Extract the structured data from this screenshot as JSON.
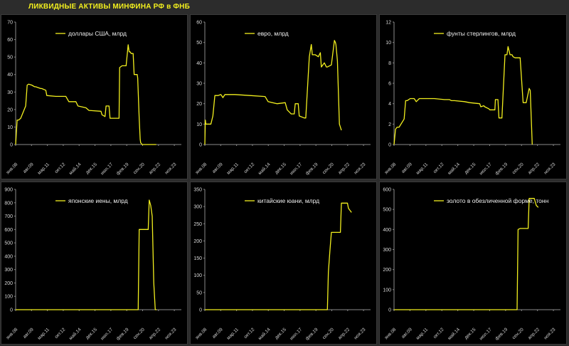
{
  "title": "ЛИКВИДНЫЕ АКТИВЫ МИНФИНА РФ в ФНБ",
  "colors": {
    "line": "#f2ef1e",
    "axis": "#8a8a8a",
    "background": "#000000"
  },
  "chart_data": [
    {
      "type": "line",
      "series_name": "доллары США, млрд",
      "ylim": [
        0,
        70
      ],
      "yticks": [
        0,
        10,
        20,
        30,
        40,
        50,
        60,
        70
      ],
      "xticks": [
        "янв.08",
        "авг.09",
        "мар.11",
        "окт.12",
        "май.14",
        "дек.15",
        "июл.17",
        "фев.19",
        "сен.20",
        "апр.22",
        "ноя.23"
      ],
      "xlim": [
        0,
        16.5
      ],
      "x": [
        0,
        0.15,
        0.3,
        0.5,
        1.0,
        1.15,
        1.3,
        1.6,
        1.9,
        2.0,
        2.5,
        2.6,
        3.0,
        3.1,
        4.0,
        4.2,
        5.0,
        5.3,
        6.0,
        6.2,
        7.0,
        7.3,
        8.5,
        8.6,
        8.9,
        9.0,
        9.3,
        9.4,
        10.0,
        10.05,
        10.3,
        10.35,
        10.6,
        10.7,
        11.0,
        11.2,
        11.3,
        11.4,
        11.5,
        11.7,
        11.8,
        12.1,
        12.15,
        12.3,
        12.4,
        12.45,
        12.6,
        14.0
      ],
      "values": [
        0,
        14,
        14,
        15,
        22,
        34,
        34.5,
        34,
        33,
        33,
        32,
        32,
        31,
        28,
        27.5,
        27.5,
        27.5,
        24.5,
        24.5,
        22,
        21,
        19.5,
        19,
        17,
        16,
        22,
        22,
        15,
        15,
        15,
        15,
        44,
        45,
        45,
        45,
        57,
        53,
        53,
        52,
        52,
        40,
        40,
        38,
        15,
        3,
        1,
        0,
        0
      ]
    },
    {
      "type": "line",
      "series_name": "евро, млрд",
      "ylim": [
        0,
        60
      ],
      "yticks": [
        0,
        10,
        20,
        30,
        40,
        50,
        60
      ],
      "xticks": [
        "янв.08",
        "авг.09",
        "мар.11",
        "окт.12",
        "май.14",
        "дек.15",
        "июл.17",
        "фев.19",
        "сен.20",
        "апр.22",
        "ноя.23"
      ],
      "xlim": [
        0,
        16.5
      ],
      "x": [
        0,
        0.05,
        0.1,
        0.3,
        0.6,
        0.8,
        1.0,
        1.3,
        1.6,
        1.8,
        2.0,
        2.5,
        3.0,
        4.5,
        6.0,
        6.3,
        7.2,
        8.0,
        8.2,
        8.5,
        8.6,
        8.9,
        9.0,
        9.3,
        9.4,
        9.9,
        10.0,
        10.05,
        10.4,
        10.6,
        10.7,
        11.0,
        11.3,
        11.5,
        11.6,
        11.9,
        12.1,
        12.2,
        12.6,
        12.9,
        13.0,
        13.05,
        13.2,
        13.4,
        13.6
      ],
      "values": [
        0,
        12,
        10,
        10,
        10,
        14,
        24,
        24,
        24.5,
        23,
        24.5,
        24.5,
        24.5,
        24,
        23.5,
        21,
        20,
        20.5,
        17,
        15.5,
        15,
        15,
        20,
        20,
        14,
        13,
        13,
        13,
        43,
        49,
        44,
        44,
        43,
        45,
        38,
        40,
        38,
        38,
        39,
        51,
        50,
        49,
        41,
        10,
        7
      ]
    },
    {
      "type": "line",
      "series_name": "фунты стерлингов, млрд",
      "ylim": [
        0,
        12
      ],
      "yticks": [
        0,
        2,
        4,
        6,
        8,
        10,
        12
      ],
      "xticks": [
        "янв.08",
        "авг.09",
        "мар.11",
        "окт.12",
        "май.14",
        "дек.15",
        "июл.17",
        "фев.19",
        "сен.20",
        "апр.22",
        "ноя.23"
      ],
      "xlim": [
        0,
        16.5
      ],
      "x": [
        0,
        0.15,
        0.3,
        0.5,
        1.0,
        1.15,
        1.3,
        1.6,
        2.0,
        2.2,
        2.5,
        4.0,
        5.0,
        5.5,
        5.7,
        6.0,
        7.0,
        7.5,
        8.5,
        8.6,
        8.9,
        9.0,
        9.4,
        9.5,
        10.0,
        10.05,
        10.3,
        10.4,
        10.6,
        10.7,
        11.0,
        11.2,
        11.3,
        11.5,
        11.7,
        11.8,
        12.0,
        12.1,
        12.5,
        12.8,
        13.0,
        13.1,
        13.4,
        13.5,
        13.7
      ],
      "values": [
        0,
        1.5,
        1.7,
        1.7,
        2.5,
        4.3,
        4.3,
        4.5,
        4.5,
        4.2,
        4.5,
        4.5,
        4.4,
        4.4,
        4.3,
        4.3,
        4.2,
        4.1,
        4.0,
        3.7,
        3.8,
        3.7,
        3.5,
        3.4,
        3.4,
        4.4,
        4.4,
        2.6,
        2.6,
        2.6,
        8.8,
        8.8,
        9.6,
        8.8,
        8.8,
        8.6,
        8.5,
        8.5,
        8.5,
        4.1,
        4.1,
        4.1,
        5.5,
        5.3,
        0
      ]
    },
    {
      "type": "line",
      "series_name": "японские иены, млрд",
      "ylim": [
        0,
        900
      ],
      "yticks": [
        0,
        100,
        200,
        300,
        400,
        500,
        600,
        700,
        800,
        900
      ],
      "xticks": [
        "янв.08",
        "авг.09",
        "мар.11",
        "окт.12",
        "май.14",
        "дек.15",
        "июл.17",
        "фев.19",
        "сен.20",
        "апр.22",
        "ноя.23"
      ],
      "xlim": [
        0,
        16.5
      ],
      "x": [
        0,
        12.2,
        12.3,
        12.8,
        13.2,
        13.3,
        13.45,
        13.6,
        13.75,
        13.9,
        14.05
      ],
      "values": [
        0,
        0,
        600,
        600,
        600,
        820,
        780,
        700,
        200,
        0,
        0
      ]
    },
    {
      "type": "line",
      "series_name": "китайские юани, млрд",
      "ylim": [
        0,
        350
      ],
      "yticks": [
        0,
        50,
        100,
        150,
        200,
        250,
        300,
        350
      ],
      "xticks": [
        "янв.08",
        "авг.09",
        "мар.11",
        "окт.12",
        "май.14",
        "дек.15",
        "июл.17",
        "фев.19",
        "сен.20",
        "апр.22",
        "ноя.23"
      ],
      "xlim": [
        0,
        16.5
      ],
      "x": [
        0,
        12.2,
        12.3,
        12.45,
        12.6,
        13.5,
        13.6,
        14.2,
        14.3,
        14.6
      ],
      "values": [
        0,
        0,
        110,
        170,
        225,
        225,
        310,
        310,
        295,
        283
      ]
    },
    {
      "type": "line",
      "series_name": "золото в обезличенной форме, тонн",
      "ylim": [
        0,
        600
      ],
      "yticks": [
        0,
        100,
        200,
        300,
        400,
        500,
        600
      ],
      "xticks": [
        "янв.08",
        "авг.09",
        "мар.11",
        "окт.12",
        "май.14",
        "дек.15",
        "июл.17",
        "фев.19",
        "сен.20",
        "апр.22",
        "ноя.23"
      ],
      "xlim": [
        0,
        16.5
      ],
      "x": [
        0,
        12.2,
        12.3,
        12.5,
        12.9,
        13.3,
        13.4,
        13.9,
        14.1,
        14.3
      ],
      "values": [
        0,
        0,
        400,
        405,
        405,
        405,
        555,
        555,
        520,
        510
      ]
    }
  ]
}
